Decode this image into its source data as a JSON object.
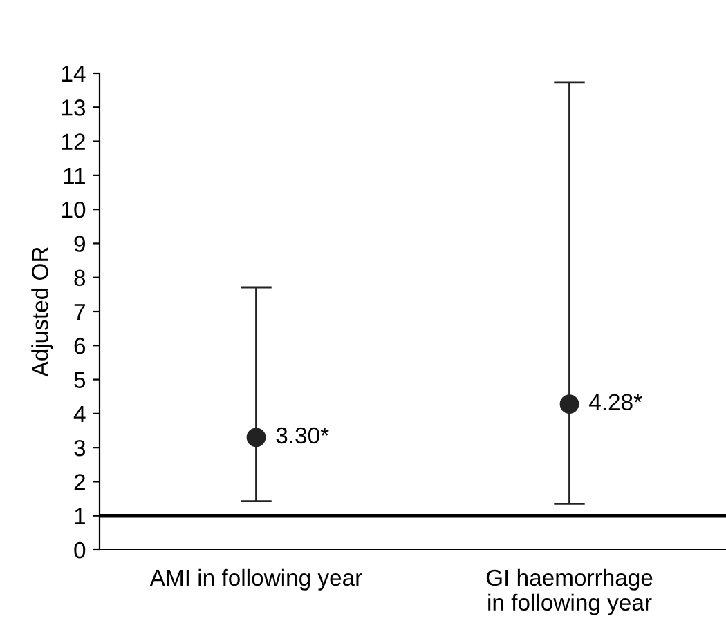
{
  "chart_data": {
    "type": "scatter",
    "ylabel": "Adjusted OR",
    "categories": [
      "AMI in following year",
      "GI haemorrhage\nin following year"
    ],
    "values": [
      3.3,
      4.28
    ],
    "errors": [
      [
        1.43,
        7.71
      ],
      [
        1.35,
        13.74
      ]
    ],
    "value_labels": [
      "3.30*",
      "4.28*"
    ],
    "color": "#222222",
    "marker": "circle",
    "ylim": [
      0,
      14
    ],
    "yticks": [
      0,
      1,
      2,
      3,
      4,
      5,
      6,
      7,
      8,
      9,
      10,
      11,
      12,
      13,
      14
    ],
    "ref_lines": [
      {
        "axis": "y",
        "value": 1,
        "color": "#000000",
        "line_style": "solid"
      }
    ],
    "grid": false,
    "legend": false
  }
}
